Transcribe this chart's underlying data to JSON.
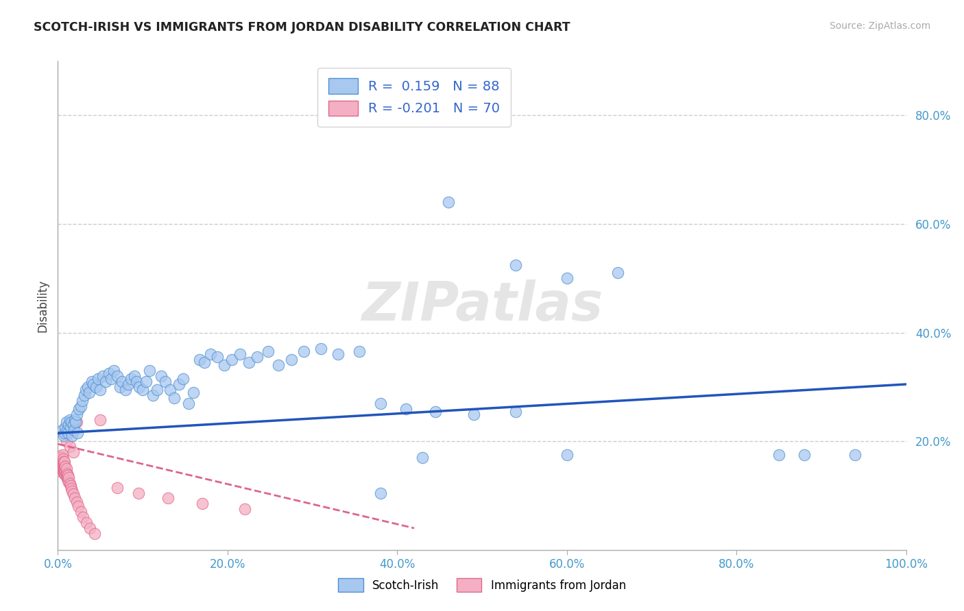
{
  "title": "SCOTCH-IRISH VS IMMIGRANTS FROM JORDAN DISABILITY CORRELATION CHART",
  "source": "Source: ZipAtlas.com",
  "ylabel": "Disability",
  "xlim": [
    0,
    1.0
  ],
  "ylim": [
    0,
    0.9
  ],
  "xticks": [
    0.0,
    0.2,
    0.4,
    0.6,
    0.8,
    1.0
  ],
  "xticklabels": [
    "0.0%",
    "20.0%",
    "40.0%",
    "60.0%",
    "80.0%",
    "100.0%"
  ],
  "yticks": [
    0.0,
    0.2,
    0.4,
    0.6,
    0.8
  ],
  "yticklabels": [
    "",
    "20.0%",
    "40.0%",
    "60.0%",
    "80.0%"
  ],
  "blue_R": 0.159,
  "blue_N": 88,
  "pink_R": -0.201,
  "pink_N": 70,
  "blue_color": "#a8c8f0",
  "pink_color": "#f4afc4",
  "blue_edge_color": "#5090d0",
  "pink_edge_color": "#e06888",
  "blue_line_color": "#2255bb",
  "pink_line_color": "#dd6688",
  "background_color": "#ffffff",
  "watermark": "ZIPatlas",
  "blue_trend_x": [
    0.0,
    1.0
  ],
  "blue_trend_y": [
    0.215,
    0.305
  ],
  "pink_trend_x": [
    0.0,
    0.42
  ],
  "pink_trend_y": [
    0.195,
    0.04
  ],
  "scotch_irish_x": [
    0.005,
    0.007,
    0.008,
    0.009,
    0.01,
    0.011,
    0.012,
    0.013,
    0.014,
    0.015,
    0.016,
    0.017,
    0.018,
    0.019,
    0.02,
    0.021,
    0.022,
    0.023,
    0.025,
    0.027,
    0.029,
    0.031,
    0.033,
    0.035,
    0.037,
    0.04,
    0.042,
    0.045,
    0.047,
    0.05,
    0.053,
    0.056,
    0.06,
    0.063,
    0.066,
    0.07,
    0.073,
    0.076,
    0.08,
    0.083,
    0.086,
    0.09,
    0.093,
    0.096,
    0.1,
    0.104,
    0.108,
    0.112,
    0.117,
    0.122,
    0.127,
    0.132,
    0.137,
    0.143,
    0.148,
    0.154,
    0.16,
    0.167,
    0.173,
    0.18,
    0.188,
    0.196,
    0.205,
    0.215,
    0.225,
    0.235,
    0.248,
    0.26,
    0.275,
    0.29,
    0.31,
    0.33,
    0.355,
    0.38,
    0.41,
    0.445,
    0.49,
    0.54,
    0.6,
    0.66,
    0.54,
    0.6,
    0.43,
    0.46,
    0.38,
    0.85,
    0.88,
    0.94
  ],
  "scotch_irish_y": [
    0.22,
    0.21,
    0.215,
    0.225,
    0.235,
    0.22,
    0.215,
    0.23,
    0.24,
    0.225,
    0.235,
    0.21,
    0.23,
    0.22,
    0.24,
    0.235,
    0.25,
    0.215,
    0.26,
    0.265,
    0.275,
    0.285,
    0.295,
    0.3,
    0.29,
    0.31,
    0.305,
    0.3,
    0.315,
    0.295,
    0.32,
    0.31,
    0.325,
    0.315,
    0.33,
    0.32,
    0.3,
    0.31,
    0.295,
    0.305,
    0.315,
    0.32,
    0.31,
    0.3,
    0.295,
    0.31,
    0.33,
    0.285,
    0.295,
    0.32,
    0.31,
    0.295,
    0.28,
    0.305,
    0.315,
    0.27,
    0.29,
    0.35,
    0.345,
    0.36,
    0.355,
    0.34,
    0.35,
    0.36,
    0.345,
    0.355,
    0.365,
    0.34,
    0.35,
    0.365,
    0.37,
    0.36,
    0.365,
    0.27,
    0.26,
    0.255,
    0.25,
    0.255,
    0.5,
    0.51,
    0.525,
    0.175,
    0.17,
    0.64,
    0.105,
    0.175,
    0.175,
    0.175
  ],
  "jordan_x": [
    0.001,
    0.001,
    0.002,
    0.002,
    0.002,
    0.002,
    0.003,
    0.003,
    0.003,
    0.003,
    0.003,
    0.004,
    0.004,
    0.004,
    0.004,
    0.004,
    0.005,
    0.005,
    0.005,
    0.005,
    0.005,
    0.005,
    0.006,
    0.006,
    0.006,
    0.006,
    0.006,
    0.007,
    0.007,
    0.007,
    0.007,
    0.008,
    0.008,
    0.008,
    0.008,
    0.009,
    0.009,
    0.009,
    0.01,
    0.01,
    0.01,
    0.011,
    0.011,
    0.012,
    0.012,
    0.013,
    0.013,
    0.014,
    0.015,
    0.016,
    0.017,
    0.018,
    0.02,
    0.022,
    0.024,
    0.027,
    0.03,
    0.034,
    0.038,
    0.043,
    0.01,
    0.014,
    0.018,
    0.022,
    0.05,
    0.07,
    0.095,
    0.13,
    0.17,
    0.22
  ],
  "jordan_y": [
    0.155,
    0.165,
    0.148,
    0.158,
    0.165,
    0.17,
    0.15,
    0.158,
    0.163,
    0.168,
    0.173,
    0.145,
    0.153,
    0.16,
    0.165,
    0.17,
    0.148,
    0.153,
    0.16,
    0.165,
    0.17,
    0.175,
    0.145,
    0.15,
    0.157,
    0.163,
    0.168,
    0.143,
    0.15,
    0.157,
    0.163,
    0.14,
    0.148,
    0.155,
    0.162,
    0.138,
    0.145,
    0.153,
    0.135,
    0.142,
    0.15,
    0.132,
    0.14,
    0.128,
    0.137,
    0.125,
    0.133,
    0.122,
    0.118,
    0.113,
    0.108,
    0.103,
    0.095,
    0.088,
    0.08,
    0.07,
    0.06,
    0.05,
    0.04,
    0.03,
    0.2,
    0.19,
    0.18,
    0.235,
    0.24,
    0.115,
    0.105,
    0.095,
    0.085,
    0.075
  ]
}
